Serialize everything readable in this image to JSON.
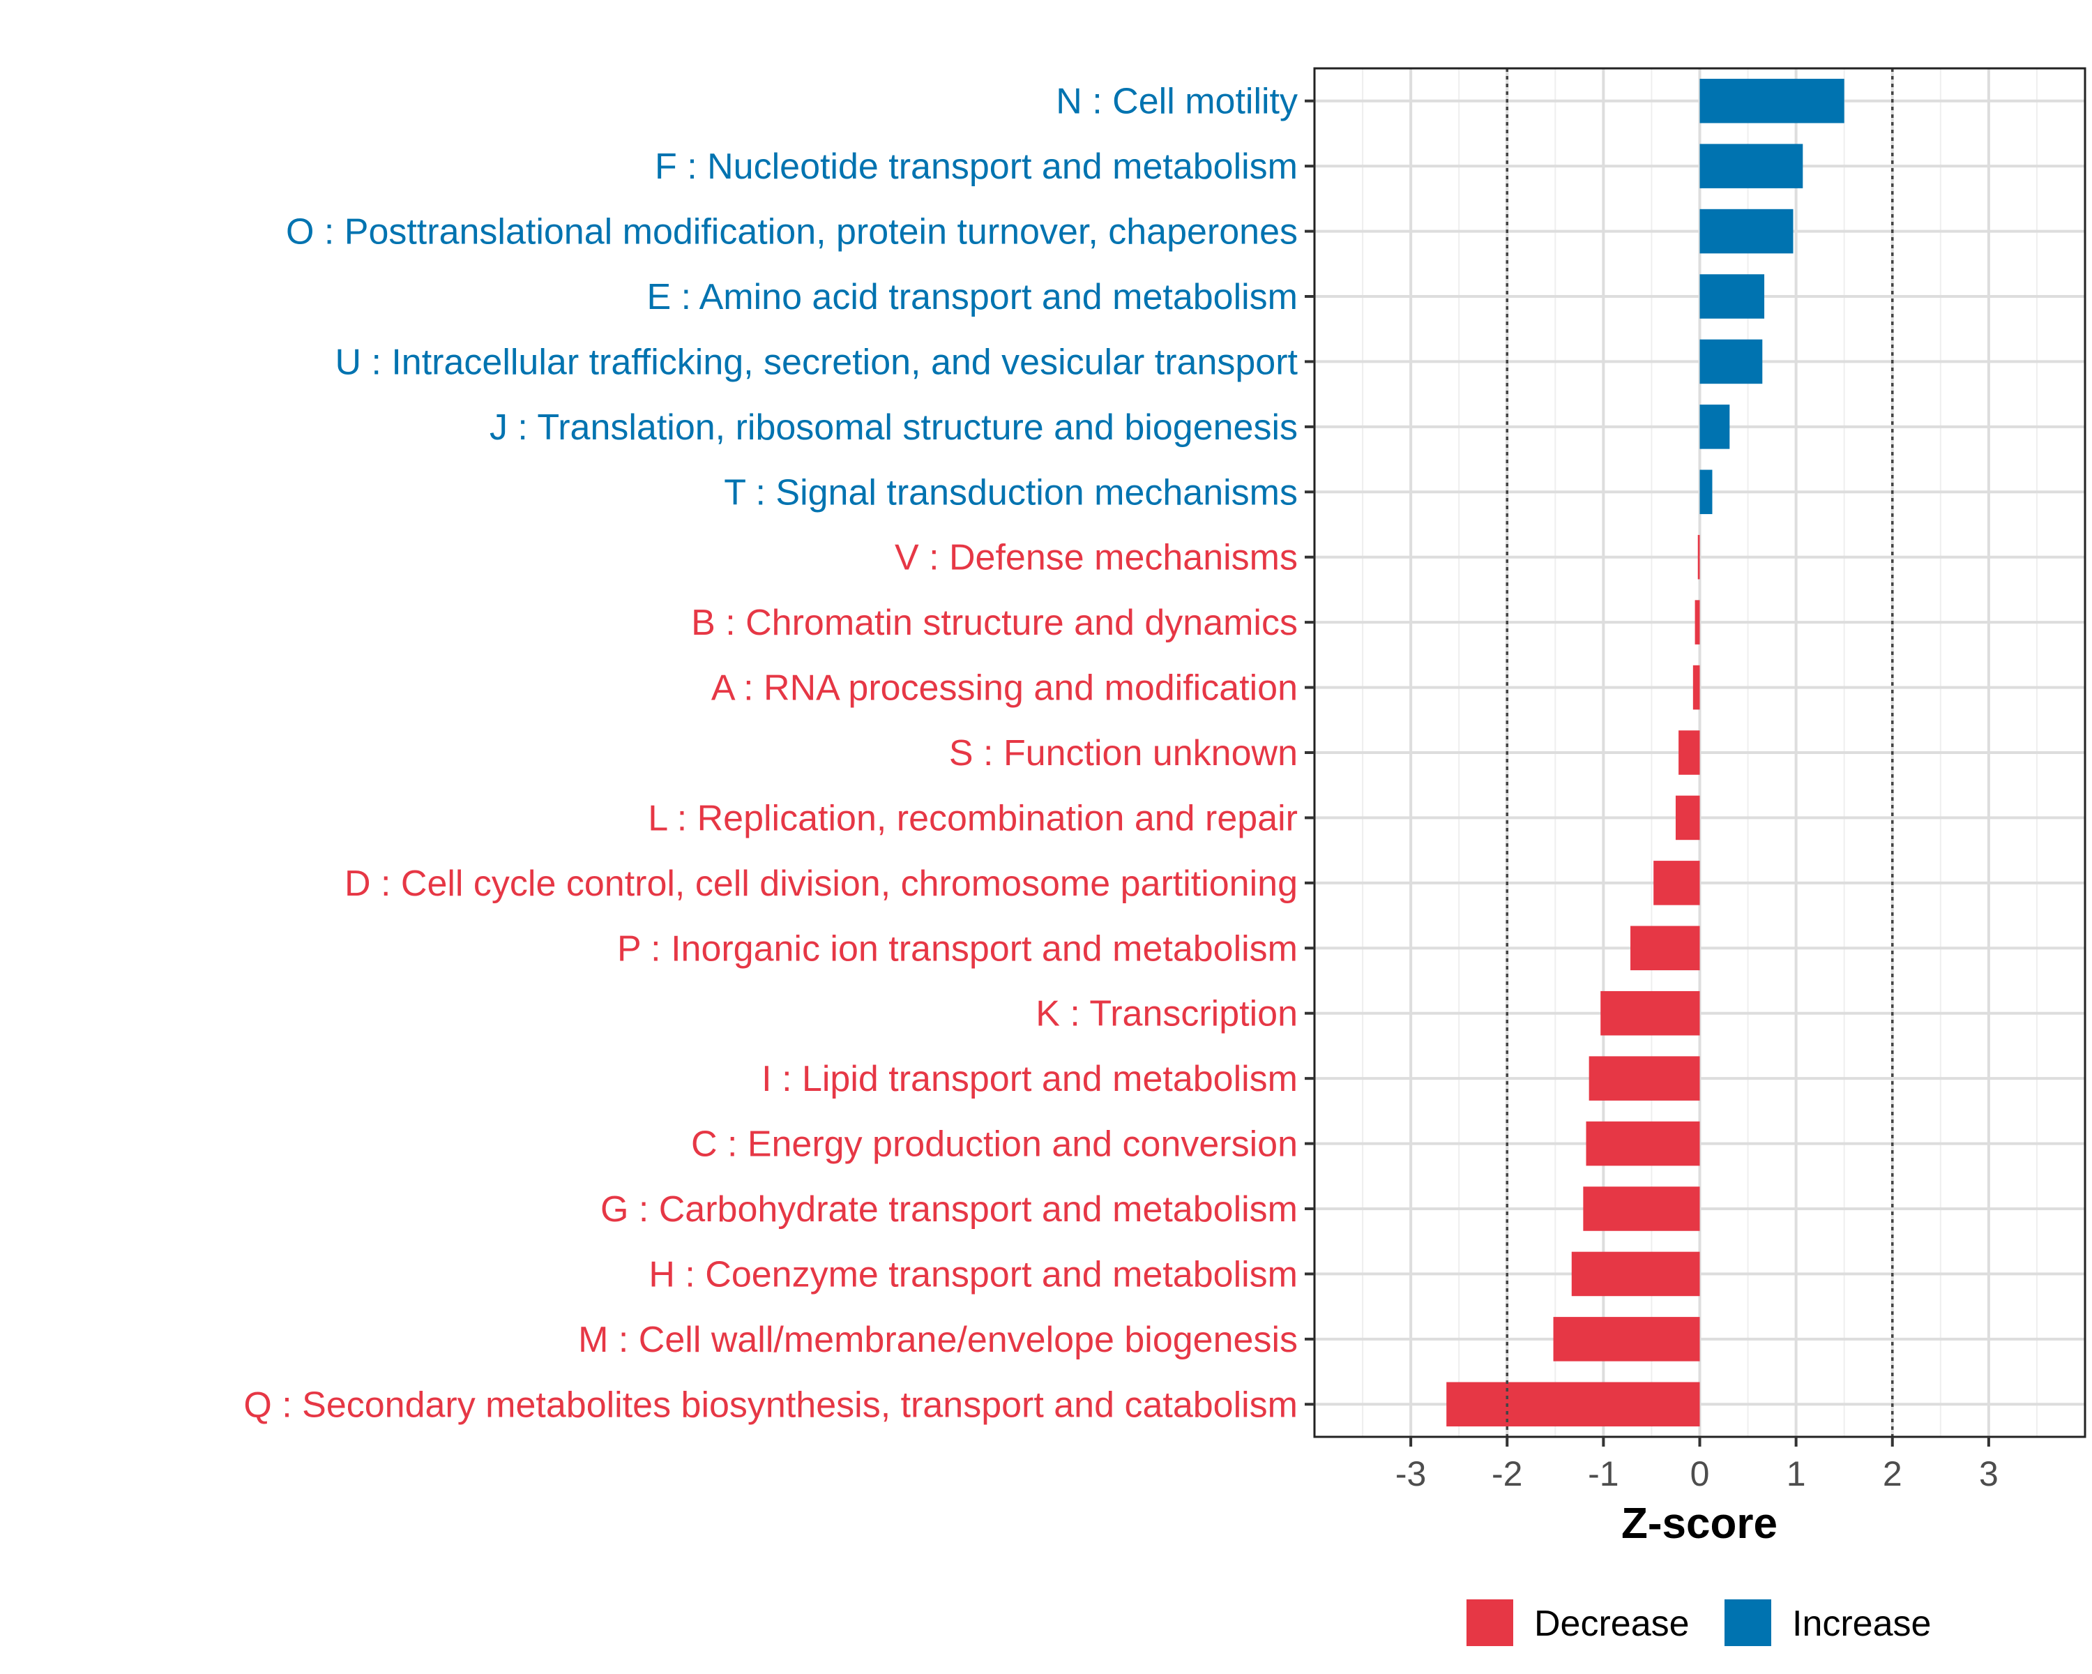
{
  "chart_data": {
    "type": "bar",
    "orientation": "horizontal",
    "title": "",
    "xlabel": "Z-score",
    "ylabel": "",
    "xlim": [
      -4,
      4
    ],
    "xticks": [
      "-3",
      "-2",
      "-1",
      "0",
      "1",
      "2",
      "3"
    ],
    "xtick_values": [
      -3,
      -2,
      -1,
      0,
      1,
      2,
      3
    ],
    "threshold_lines": [
      -2,
      2
    ],
    "grid": true,
    "colors": {
      "Increase": "#0073b0",
      "Decrease": "#e63745"
    },
    "categories": [
      "N : Cell motility",
      "F : Nucleotide transport and metabolism",
      "O : Posttranslational modification, protein turnover, chaperones",
      "E : Amino acid transport and metabolism",
      "U : Intracellular trafficking, secretion, and vesicular transport",
      "J : Translation, ribosomal structure and biogenesis",
      "T : Signal transduction mechanisms",
      "V : Defense mechanisms",
      "B : Chromatin structure and dynamics",
      "A : RNA processing and modification",
      "S : Function unknown",
      "L : Replication, recombination and repair",
      "D : Cell cycle control, cell division, chromosome partitioning",
      "P : Inorganic ion transport and metabolism",
      "K : Transcription",
      "I : Lipid transport and metabolism",
      "C : Energy production and conversion",
      "G : Carbohydrate transport and metabolism",
      "H : Coenzyme transport and metabolism",
      "M : Cell wall/membrane/envelope biogenesis",
      "Q : Secondary metabolites biosynthesis, transport and catabolism"
    ],
    "values": [
      1.5,
      1.07,
      0.97,
      0.67,
      0.65,
      0.31,
      0.13,
      -0.02,
      -0.05,
      -0.07,
      -0.22,
      -0.25,
      -0.48,
      -0.72,
      -1.03,
      -1.15,
      -1.18,
      -1.21,
      -1.33,
      -1.52,
      -2.63
    ],
    "groups": [
      "Increase",
      "Increase",
      "Increase",
      "Increase",
      "Increase",
      "Increase",
      "Increase",
      "Decrease",
      "Decrease",
      "Decrease",
      "Decrease",
      "Decrease",
      "Decrease",
      "Decrease",
      "Decrease",
      "Decrease",
      "Decrease",
      "Decrease",
      "Decrease",
      "Decrease",
      "Decrease"
    ],
    "legend": {
      "position": "bottom",
      "entries": [
        {
          "label": "Decrease",
          "color": "#e63745"
        },
        {
          "label": "Increase",
          "color": "#0073b0"
        }
      ]
    }
  }
}
